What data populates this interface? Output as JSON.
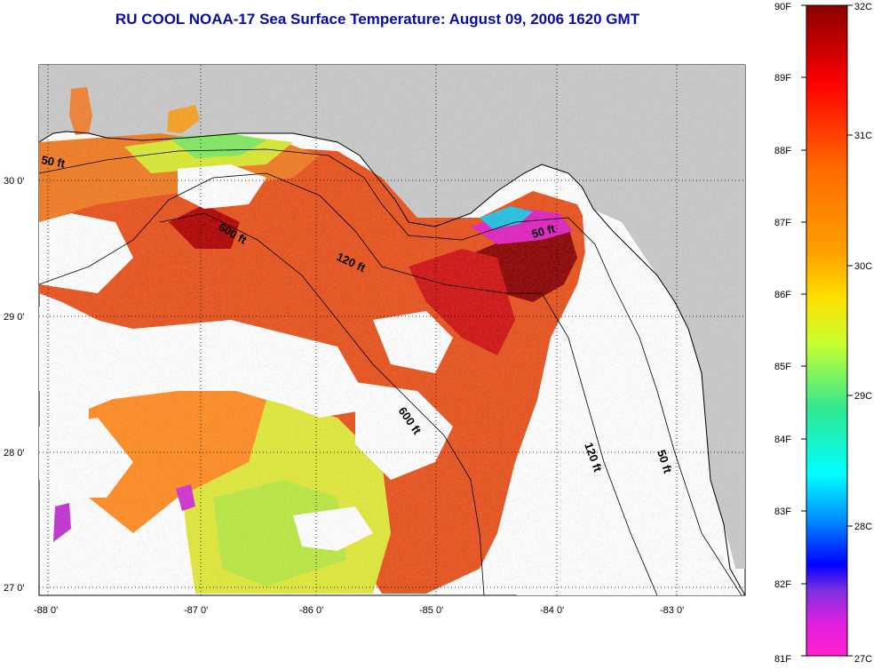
{
  "title": "RU COOL  NOAA-17  Sea Surface Temperature:  August 09, 2006 1620 GMT",
  "map": {
    "lon_ticks": [
      "-88 0'",
      "-87 0'",
      "-86 0'",
      "-85 0'",
      "-84 0'",
      "-83 0'"
    ],
    "lat_ticks": [
      "30 0'",
      "29 0'",
      "28 0'",
      "27 0'"
    ],
    "contour_labels": [
      "50 ft",
      "600 ft",
      "120 ft",
      "50 ft",
      "600 ft",
      "120 ft",
      "50 ft"
    ],
    "colors": {
      "land": "#c8c8c8",
      "cloud": "#ffffff",
      "coast": "#000000"
    }
  },
  "colorbar": {
    "f_labels": [
      "90F",
      "89F",
      "88F",
      "87F",
      "86F",
      "85F",
      "84F",
      "83F",
      "82F",
      "81F"
    ],
    "c_labels": [
      "32C",
      "31C",
      "30C",
      "29C",
      "28C",
      "27C"
    ],
    "stops": [
      "#8b0000",
      "#ff0000",
      "#ff8c00",
      "#ffff00",
      "#00ffff",
      "#0000ff",
      "#ff00ff"
    ]
  }
}
